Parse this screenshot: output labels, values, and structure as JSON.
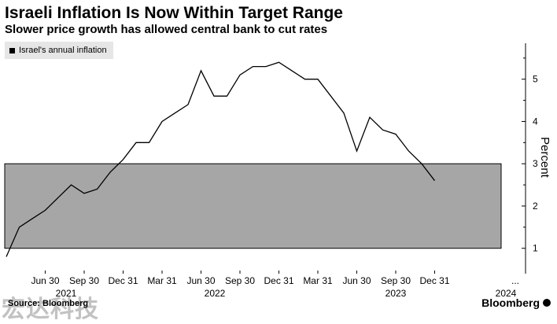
{
  "header": {
    "title": "Israeli Inflation Is Now Within Target Range",
    "subtitle": "Slower price growth has allowed central bank to cut rates"
  },
  "legend": {
    "label": "Israel's annual inflation"
  },
  "footer": {
    "source": "Source: Bloomberg",
    "watermark": "宏达科技",
    "brand": "Bloomberg"
  },
  "colors": {
    "line": "#000000",
    "target_band": "#a6a6a6",
    "legend_bg": "#e6e6e6"
  },
  "chart_data": {
    "type": "line",
    "title": "Israeli Inflation Is Now Within Target Range",
    "subtitle": "Slower price growth has allowed central bank to cut rates",
    "ylabel": "Percent",
    "ylim": [
      0.4,
      5.85
    ],
    "y_ticks": [
      1,
      2,
      3,
      4,
      5
    ],
    "grid": false,
    "legend_position": "top-left",
    "target_band": {
      "from": 1,
      "to": 3
    },
    "x_tick_labels": [
      "Jun 30",
      "Sep 30",
      "Dec 31",
      "Mar 31",
      "Jun 30",
      "Sep 30",
      "Dec 31",
      "Mar 31",
      "Jun 30",
      "Sep 30",
      "Dec 31",
      "..."
    ],
    "year_labels": [
      "2021",
      "2022",
      "2023",
      "2024"
    ],
    "series": [
      {
        "name": "Israel's annual inflation",
        "x": [
          "2021-03",
          "2021-04",
          "2021-05",
          "2021-06",
          "2021-07",
          "2021-08",
          "2021-09",
          "2021-10",
          "2021-11",
          "2021-12",
          "2022-01",
          "2022-02",
          "2022-03",
          "2022-04",
          "2022-05",
          "2022-06",
          "2022-07",
          "2022-08",
          "2022-09",
          "2022-10",
          "2022-11",
          "2022-12",
          "2023-01",
          "2023-02",
          "2023-03",
          "2023-04",
          "2023-05",
          "2023-06",
          "2023-07",
          "2023-08",
          "2023-09",
          "2023-10",
          "2023-11",
          "2023-12",
          "2024-01"
        ],
        "values": [
          0.8,
          1.5,
          1.7,
          1.9,
          2.2,
          2.5,
          2.3,
          2.4,
          2.8,
          3.1,
          3.5,
          3.5,
          4.0,
          4.2,
          4.4,
          5.2,
          4.6,
          4.6,
          5.1,
          5.3,
          5.3,
          5.4,
          5.2,
          5.0,
          5.0,
          4.6,
          4.2,
          3.3,
          4.1,
          3.8,
          3.7,
          3.3,
          3.0,
          2.6,
          null
        ]
      }
    ]
  }
}
